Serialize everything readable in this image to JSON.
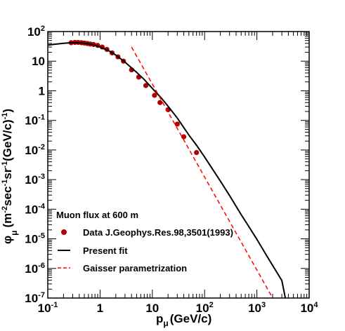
{
  "chart_data": {
    "type": "scatter",
    "x_scale": "log",
    "y_scale": "log",
    "xlim": [
      0.1,
      10000
    ],
    "ylim": [
      1e-07,
      100
    ],
    "x_ticks": [
      {
        "value": 0.1,
        "base": "10",
        "exp": "-1"
      },
      {
        "value": 1,
        "base": "1",
        "exp": ""
      },
      {
        "value": 10,
        "base": "10",
        "exp": ""
      },
      {
        "value": 100,
        "base": "10",
        "exp": "2"
      },
      {
        "value": 1000,
        "base": "10",
        "exp": "3"
      },
      {
        "value": 10000,
        "base": "10",
        "exp": "4"
      }
    ],
    "y_ticks": [
      {
        "value": 1e-07,
        "base": "10",
        "exp": "-7"
      },
      {
        "value": 1e-06,
        "base": "10",
        "exp": "-6"
      },
      {
        "value": 1e-05,
        "base": "10",
        "exp": "-5"
      },
      {
        "value": 0.0001,
        "base": "10",
        "exp": "-4"
      },
      {
        "value": 0.001,
        "base": "10",
        "exp": "-3"
      },
      {
        "value": 0.01,
        "base": "10",
        "exp": "-2"
      },
      {
        "value": 0.1,
        "base": "10",
        "exp": "-1"
      },
      {
        "value": 1,
        "base": "1",
        "exp": ""
      },
      {
        "value": 10,
        "base": "10",
        "exp": ""
      },
      {
        "value": 100,
        "base": "10",
        "exp": "2"
      }
    ],
    "xlabel": {
      "main": "p",
      "sub": "μ",
      "unit": "(GeV/c)"
    },
    "ylabel": {
      "phi": "φ",
      "phi_sub": "μ",
      "open": "(m",
      "exp1": "-2",
      "t1": "sec",
      "exp2": "-1",
      "t2": "sr",
      "exp3": "-1",
      "t3": "(GeV/c)",
      "exp4": "-1",
      "close": ")"
    },
    "legend_title": "Muon flux at 600 m",
    "series": [
      {
        "name": "Data J.Geophys.Res.98,3501(1993)",
        "style": "points",
        "color": "#b00000",
        "x": [
          0.28,
          0.33,
          0.38,
          0.44,
          0.5,
          0.57,
          0.65,
          0.75,
          0.9,
          1.1,
          1.35,
          1.7,
          2.2,
          2.8,
          4.0,
          5.5,
          7.5,
          11,
          14,
          20,
          30,
          40,
          70
        ],
        "y": [
          42,
          43,
          43,
          42,
          41,
          39.5,
          38,
          36.5,
          34,
          30,
          25,
          19,
          14,
          10,
          5.1,
          2.9,
          1.5,
          0.7,
          0.4,
          0.23,
          0.075,
          0.028,
          0.0082
        ]
      },
      {
        "name": "Present fit",
        "style": "line",
        "color": "#000000",
        "x": [
          0.1,
          0.15,
          0.2,
          0.3,
          0.5,
          0.7,
          1,
          1.5,
          2,
          3,
          5,
          7,
          10,
          15,
          20,
          30,
          50,
          70,
          100,
          150,
          200,
          300,
          500,
          700,
          1000,
          1500,
          2000,
          3000,
          3500
        ],
        "y": [
          35,
          38,
          40,
          42.5,
          40.5,
          37,
          30,
          22,
          16,
          9.3,
          4.2,
          2.4,
          1.2,
          0.56,
          0.3,
          0.12,
          0.032,
          0.0145,
          0.0058,
          0.00195,
          0.00089,
          0.00029,
          6.6e-05,
          2.6e-05,
          9.6e-06,
          2.9e-06,
          1.26e-06,
          3.9e-07,
          1e-07
        ]
      },
      {
        "name": "Gaisser parametrization",
        "style": "dashed",
        "color": "#ff0000",
        "x": [
          4,
          2000
        ],
        "y": [
          30,
          1e-07
        ]
      }
    ]
  }
}
